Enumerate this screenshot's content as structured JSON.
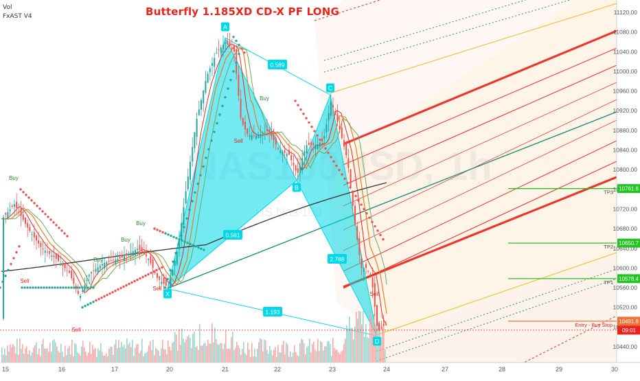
{
  "header": {
    "indicator_vol": "Vol",
    "indicator_fxast": "FxAST V4"
  },
  "chart_data": {
    "type": "candlestick",
    "title": "Butterfly 1.185XD CD-X PF LONG",
    "watermark": {
      "symbol": "NAS100USD, 1h",
      "subtitle": "US Nas 100"
    },
    "y_ticks": [
      11120,
      11080,
      11040,
      11000,
      10960,
      10920,
      10880,
      10840,
      10800,
      10760,
      10720,
      10680,
      10640,
      10600,
      10560,
      10520,
      10480,
      10440
    ],
    "x_ticks": [
      "15",
      "16",
      "17",
      "20",
      "21",
      "22",
      "23",
      "24",
      "27",
      "28",
      "29",
      "30"
    ],
    "ylim": [
      10425,
      11140
    ],
    "pattern": {
      "points": [
        {
          "label": "X",
          "price": 10558
        },
        {
          "label": "A",
          "price": 11068
        },
        {
          "label": "B",
          "price": 10778
        },
        {
          "label": "C",
          "price": 10952
        },
        {
          "label": "D",
          "price": 10462
        }
      ],
      "ratios": {
        "XB": "0.581",
        "AC": "0.589",
        "BD": "2.788",
        "XD": "1.193"
      }
    },
    "levels": [
      {
        "label": "TP3",
        "price": 10761.6,
        "value_text": "10761.6",
        "color": "#22c322"
      },
      {
        "label": "TP2",
        "price": 10650.7,
        "value_text": "10650.7",
        "color": "#22c322"
      },
      {
        "label": "TP1",
        "price": 10578.4,
        "value_text": "10578.4",
        "color": "#22c322"
      },
      {
        "label": "Entry - Buy Stop",
        "price": 10491.8,
        "value_text": "10491.8",
        "color": "#f07038"
      }
    ],
    "last_price": {
      "value_text": "10491.8",
      "countdown": "09:01",
      "color": "#e8241c"
    },
    "signals": [
      {
        "text": "Buy",
        "color": "#2a8a2a"
      },
      {
        "text": "Buy",
        "color": "#2a8a2a"
      },
      {
        "text": "Buy",
        "color": "#2a8a2a"
      },
      {
        "text": "Buy",
        "color": "#2a8a2a"
      },
      {
        "text": "Buy",
        "color": "#2a8a2a"
      },
      {
        "text": "Sell",
        "color": "#e8241c"
      },
      {
        "text": "Sell",
        "color": "#e8241c"
      },
      {
        "text": "Sell",
        "color": "#e8241c"
      },
      {
        "text": "Sell",
        "color": "#e8241c"
      },
      {
        "text": "Sell",
        "color": "#e8241c"
      }
    ],
    "colors": {
      "up": "#26a69a",
      "down": "#ef5350",
      "pattern": "#00d8e8",
      "axis_text": "#555555"
    }
  }
}
